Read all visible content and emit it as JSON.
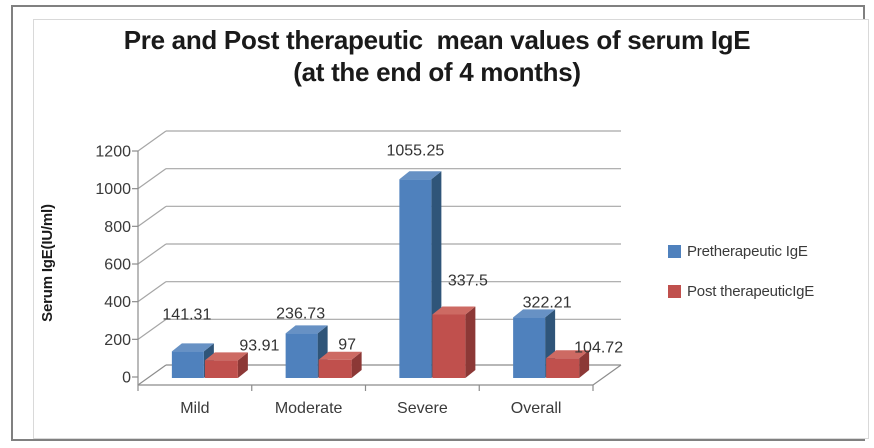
{
  "title": {
    "line1": "Pre and Post therapeutic  mean values of serum IgE",
    "line2": "(at the end of 4 months)"
  },
  "chart_data": {
    "type": "bar",
    "style": "3d-clustered-column",
    "title": "Pre and Post therapeutic  mean values of serum IgE (at the end of 4 months)",
    "categories": [
      "Mild",
      "Moderate",
      "Severe",
      "Overall"
    ],
    "series": [
      {
        "name": "Pretherapeutic IgE",
        "color": "#4F81BD",
        "color_top": "#6791C4",
        "color_side": "#2F5579",
        "values": [
          141.31,
          236.73,
          1055.25,
          322.21
        ],
        "labels": [
          "141.31",
          "236.73",
          "1055.25",
          "322.21"
        ]
      },
      {
        "name": "Post therapeuticIgE",
        "color": "#C0504D",
        "color_top": "#CD6A63",
        "color_side": "#8C3836",
        "values": [
          93.91,
          97,
          337.5,
          104.72
        ],
        "labels": [
          "93.91",
          "97",
          "337.5",
          "104.72"
        ]
      }
    ],
    "xlabel": "",
    "ylabel": "Serum IgE(IU/ml)",
    "ylim": [
      0,
      1200
    ],
    "ytick_step": 200,
    "yticks": [
      "0",
      "200",
      "400",
      "600",
      "800",
      "1000",
      "1200"
    ],
    "grid": true,
    "legend_position": "right"
  },
  "colors": {
    "frame_border": "#808080",
    "chart_border": "#D9D9D9",
    "gridline": "#A6A6A6",
    "axis": "#8C8C8C",
    "tick_text": "#3a3a3a",
    "label_text": "#333333",
    "title_text": "#1a1a1a"
  }
}
